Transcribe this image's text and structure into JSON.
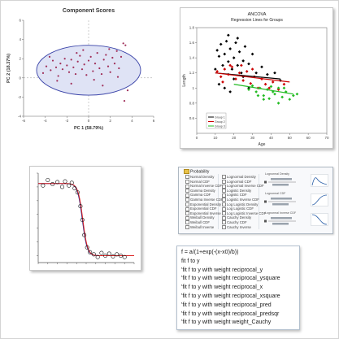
{
  "chart_data": [
    {
      "id": "pca",
      "type": "scatter",
      "title": "Component Scores",
      "xlabel": "PC 1 (58.79%)",
      "ylabel": "PC 2 (18.37%)",
      "xlim": [
        -6,
        6
      ],
      "ylim": [
        -4,
        6
      ],
      "xticks": [
        -6,
        -4,
        -2,
        0,
        2,
        4,
        6
      ],
      "yticks": [
        -4,
        -2,
        0,
        2,
        4,
        6
      ],
      "xtick_labels": [
        "-6",
        "-4",
        "-2",
        "0",
        "2",
        "4",
        "6"
      ],
      "ytick_labels": [
        "-4",
        "-2",
        "0",
        "2",
        "4",
        "6"
      ],
      "ellipse": {
        "cx": 0,
        "cy": 0.8,
        "rx": 4.8,
        "ry": 2.6
      },
      "point_color": "#a0305a",
      "points": [
        [
          -4.2,
          0.5
        ],
        [
          -3.9,
          1.2
        ],
        [
          -3.5,
          0.8
        ],
        [
          -3.3,
          1.8
        ],
        [
          -3.0,
          1.1
        ],
        [
          -2.8,
          0.2
        ],
        [
          -2.6,
          1.5
        ],
        [
          -2.4,
          0.9
        ],
        [
          -2.2,
          2.0
        ],
        [
          -2.0,
          1.3
        ],
        [
          -1.8,
          0.6
        ],
        [
          -1.6,
          1.9
        ],
        [
          -1.4,
          1.1
        ],
        [
          -1.2,
          0.4
        ],
        [
          -1.0,
          1.7
        ],
        [
          -0.8,
          2.3
        ],
        [
          -0.6,
          0.9
        ],
        [
          -0.4,
          1.4
        ],
        [
          -0.2,
          0.3
        ],
        [
          0.0,
          1.8
        ],
        [
          0.2,
          2.2
        ],
        [
          0.4,
          0.7
        ],
        [
          0.6,
          1.5
        ],
        [
          0.8,
          2.6
        ],
        [
          1.0,
          1.0
        ],
        [
          1.2,
          0.4
        ],
        [
          1.4,
          1.9
        ],
        [
          1.6,
          2.4
        ],
        [
          1.8,
          1.2
        ],
        [
          2.0,
          0.6
        ],
        [
          2.2,
          2.1
        ],
        [
          2.4,
          1.5
        ],
        [
          2.6,
          2.8
        ],
        [
          2.8,
          1.0
        ],
        [
          3.0,
          2.2
        ],
        [
          3.2,
          3.6
        ],
        [
          3.4,
          3.4
        ],
        [
          1.3,
          -0.8
        ],
        [
          -1.6,
          -0.6
        ],
        [
          3.6,
          -1.3
        ],
        [
          3.3,
          -2.4
        ],
        [
          -3.6,
          2.2
        ],
        [
          -0.5,
          2.9
        ],
        [
          1.9,
          3.0
        ],
        [
          0.5,
          -0.2
        ],
        [
          -2.9,
          -0.3
        ],
        [
          2.7,
          0.1
        ],
        [
          -1.1,
          2.6
        ]
      ]
    },
    {
      "id": "ancova",
      "type": "scatter",
      "title": "ANCOVA",
      "subtitle": "Regression Lines for Groups",
      "xlabel": "Age",
      "ylabel": "Length",
      "xlim": [
        0,
        70
      ],
      "ylim": [
        0.4,
        1.8
      ],
      "xticks": [
        0,
        10,
        20,
        30,
        40,
        50,
        60,
        70
      ],
      "yticks": [
        0.6,
        0.8,
        1.0,
        1.2,
        1.4,
        1.6,
        1.8
      ],
      "xtick_labels": [
        "0",
        "10",
        "20",
        "30",
        "40",
        "50",
        "60",
        "70"
      ],
      "ytick_labels": [
        "0.6",
        "0.8",
        "1",
        "1.2",
        "1.4",
        "1.6",
        "1.8"
      ],
      "groups": [
        {
          "color": "#000000",
          "line": [
            [
              10,
              1.2
            ],
            [
              45,
              1.12
            ]
          ],
          "points": [
            [
              11,
              1.5
            ],
            [
              12,
              1.42
            ],
            [
              13,
              1.58
            ],
            [
              14,
              1.3
            ],
            [
              15,
              1.45
            ],
            [
              16,
              1.62
            ],
            [
              17,
              1.35
            ],
            [
              18,
              1.52
            ],
            [
              19,
              1.25
            ],
            [
              20,
              1.4
            ],
            [
              21,
              1.6
            ],
            [
              22,
              1.3
            ],
            [
              23,
              1.48
            ],
            [
              24,
              1.2
            ],
            [
              25,
              1.36
            ],
            [
              26,
              1.55
            ],
            [
              28,
              1.32
            ],
            [
              30,
              1.45
            ],
            [
              12,
              1.05
            ],
            [
              15,
              1.0
            ],
            [
              18,
              0.95
            ],
            [
              20,
              1.12
            ],
            [
              25,
              1.15
            ],
            [
              32,
              1.2
            ],
            [
              35,
              1.28
            ],
            [
              38,
              1.18
            ],
            [
              42,
              1.2
            ],
            [
              45,
              1.1
            ],
            [
              17,
              1.7
            ],
            [
              22,
              1.66
            ],
            [
              28,
              1.0
            ],
            [
              10,
              1.25
            ]
          ]
        },
        {
          "color": "#cc0000",
          "line": [
            [
              10,
              1.2
            ],
            [
              50,
              1.08
            ]
          ],
          "points": [
            [
              11,
              1.22
            ],
            [
              13,
              1.15
            ],
            [
              15,
              1.25
            ],
            [
              17,
              1.18
            ],
            [
              19,
              1.28
            ],
            [
              21,
              1.12
            ],
            [
              23,
              1.2
            ],
            [
              25,
              1.1
            ],
            [
              27,
              1.22
            ],
            [
              29,
              1.06
            ],
            [
              31,
              1.15
            ],
            [
              33,
              1.0
            ],
            [
              35,
              1.12
            ],
            [
              37,
              1.05
            ],
            [
              39,
              1.0
            ],
            [
              41,
              1.08
            ],
            [
              44,
              0.98
            ],
            [
              47,
              1.05
            ],
            [
              14,
              1.08
            ],
            [
              18,
              1.3
            ],
            [
              24,
              1.3
            ],
            [
              30,
              1.25
            ]
          ]
        },
        {
          "color": "#22bb22",
          "line": [
            [
              20,
              1.05
            ],
            [
              52,
              0.92
            ]
          ],
          "points": [
            [
              28,
              0.98
            ],
            [
              30,
              1.03
            ],
            [
              32,
              0.95
            ],
            [
              34,
              1.0
            ],
            [
              36,
              0.9
            ],
            [
              38,
              0.98
            ],
            [
              40,
              1.02
            ],
            [
              42,
              0.92
            ],
            [
              44,
              1.0
            ],
            [
              46,
              0.88
            ],
            [
              48,
              0.95
            ],
            [
              50,
              0.85
            ],
            [
              52,
              0.9
            ],
            [
              44,
              0.8
            ],
            [
              36,
              0.85
            ],
            [
              41,
              0.95
            ],
            [
              54,
              0.92
            ],
            [
              33,
              0.9
            ],
            [
              47,
              1.0
            ],
            [
              39,
              0.86
            ]
          ]
        }
      ],
      "legend": {
        "placement": "bottom-left",
        "entries": [
          "Group 1",
          "Group 2",
          "Group 3"
        ]
      }
    },
    {
      "id": "fit",
      "type": "scatter",
      "title": "",
      "xlabel": "",
      "ylabel": "",
      "xlim": [
        0,
        10
      ],
      "ylim": [
        -0.1,
        1.2
      ],
      "xticks": [
        0,
        1,
        2,
        3,
        4,
        5,
        6,
        7,
        8,
        9,
        10
      ],
      "yticks": [
        0,
        0.2,
        0.4,
        0.6,
        0.8,
        1.0,
        1.2
      ],
      "curve": {
        "a": 1.05,
        "x0": 4.6,
        "b": 0.25,
        "colors": [
          "#222288",
          "#dd2222"
        ]
      },
      "marker_color": "#111111",
      "points": [
        [
          0.5,
          1.02
        ],
        [
          1.0,
          1.1
        ],
        [
          1.5,
          1.04
        ],
        [
          2.0,
          1.07
        ],
        [
          2.5,
          1.0
        ],
        [
          2.8,
          1.08
        ],
        [
          3.2,
          1.02
        ],
        [
          3.5,
          1.06
        ],
        [
          3.8,
          0.98
        ],
        [
          4.1,
          0.92
        ],
        [
          4.4,
          0.72
        ],
        [
          4.6,
          0.52
        ],
        [
          4.8,
          0.3
        ],
        [
          5.1,
          0.12
        ],
        [
          5.4,
          0.05
        ],
        [
          5.8,
          0.02
        ],
        [
          6.2,
          -0.02
        ],
        [
          6.6,
          0.04
        ],
        [
          7.0,
          0.0
        ],
        [
          7.4,
          0.03
        ],
        [
          7.8,
          -0.01
        ],
        [
          8.2,
          0.02
        ],
        [
          8.6,
          0.0
        ],
        [
          9.0,
          -0.02
        ]
      ]
    }
  ],
  "dist_panel": {
    "root_label": "Probability",
    "col1": [
      "Normal Density",
      "Normal CDF",
      "Normal Inverse CDF",
      "Gamma Density",
      "Gamma CDF",
      "Gamma Inverse CDF",
      "Exponential Density",
      "Exponential CDF",
      "Exponential Inverse",
      "Weibull Density",
      "Weibull CDF",
      "Weibull Inverse"
    ],
    "col2": [
      "Lognormal Density",
      "Lognormal CDF",
      "Lognormal Inverse CDF",
      "Logistic Density",
      "Logistic CDF",
      "Logistic Inverse CDF",
      "Log Logistic Density",
      "Log Logistic CDF",
      "Log Logistic Inverse CDF",
      "Cauchy Density",
      "Cauchy CDF",
      "Cauchy Inverse"
    ],
    "captions": [
      "Lognormal Density",
      "Lognormal CDF",
      "Lognormal Inverse CDF"
    ],
    "accent": "#2a5fa8"
  },
  "commands": [
    "f = a/(1+exp(-(x-x0)/b))",
    "fit f to y",
    "'fit f to y with weight reciprocal_y",
    "'fit f to y with weight reciprocal_ysquare",
    "'fit f to y with weight reciprocal_x",
    "'fit f to y with weight reciprocal_xsquare",
    "'fit f to y with weight reciprocal_pred",
    "'fit f to y with weight reciprocal_predsqr",
    "'fit f to y with weight weight_Cauchy"
  ]
}
